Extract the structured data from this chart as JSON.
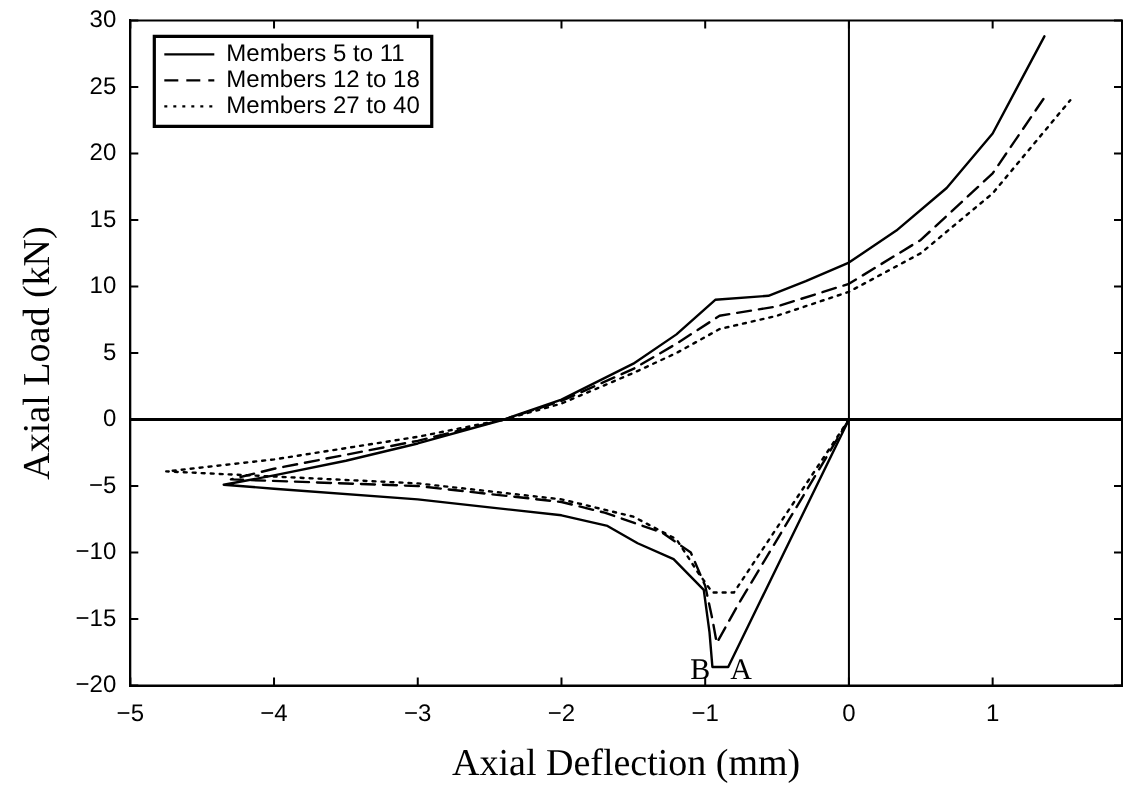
{
  "chart_data": {
    "type": "line",
    "xlabel": "Axial Deflection (mm)",
    "ylabel": "Axial Load (kN)",
    "xlim": [
      -5,
      1.9
    ],
    "xticks": [
      -5,
      -4,
      -3,
      -2,
      -1,
      0,
      1
    ],
    "ylim": [
      -20,
      30
    ],
    "yticks": [
      -20,
      -15,
      -10,
      -5,
      0,
      5,
      10,
      15,
      20,
      25,
      30
    ],
    "grid": false,
    "legend": "top left",
    "marker": "none",
    "series": [
      {
        "name": "Members 5 to 11",
        "color": "#000000",
        "line_style": "solid",
        "x": [
          0,
          -0.84,
          -0.95,
          -0.97,
          -1.01,
          -1.22,
          -1.47,
          -1.68,
          -2,
          -3,
          -4,
          -4.35,
          -4,
          -3.5,
          -3,
          -2.4,
          -2,
          -1.5,
          -1.2,
          -0.93,
          -0.56,
          -0.3,
          0,
          0.33,
          0.68,
          1,
          1.36
        ],
        "values": [
          0,
          -18.6,
          -18.6,
          -16,
          -12.8,
          -10.5,
          -9.3,
          -8,
          -7.2,
          -6,
          -5.2,
          -4.9,
          -4.2,
          -3.1,
          -1.8,
          0,
          1.5,
          4.2,
          6.4,
          9,
          9.3,
          10.4,
          11.8,
          14.2,
          17.4,
          21.5,
          28.8
        ]
      },
      {
        "name": "Members 12 to 18",
        "color": "#000000",
        "line_style": "dashed",
        "x": [
          0,
          -0.77,
          -0.92,
          -0.95,
          -1,
          -1.1,
          -1.3,
          -1.7,
          -2,
          -3,
          -4.3,
          -4,
          -3,
          -2.4,
          -2,
          -1.5,
          -1.2,
          -0.9,
          -0.5,
          0,
          0.5,
          1,
          1.36
        ],
        "values": [
          0,
          -13.9,
          -16.8,
          -15,
          -12.5,
          -10,
          -8.5,
          -7,
          -6.2,
          -5,
          -4.5,
          -3.7,
          -1.6,
          0,
          1.4,
          3.8,
          5.7,
          7.8,
          8.5,
          10.2,
          13.5,
          18.5,
          24.2
        ]
      },
      {
        "name": "Members 27 to 40",
        "color": "#000000",
        "line_style": "dotted",
        "x": [
          0,
          -0.8,
          -0.95,
          -1.05,
          -1.2,
          -1.5,
          -2,
          -3,
          -4.75,
          -4,
          -3,
          -2.4,
          -2,
          -1.5,
          -1.2,
          -0.9,
          -0.5,
          0,
          0.5,
          1,
          1.54
        ],
        "values": [
          0,
          -13,
          -13,
          -11.5,
          -9,
          -7.3,
          -6,
          -4.8,
          -3.9,
          -3,
          -1.3,
          0,
          1.2,
          3.5,
          5,
          6.8,
          7.8,
          9.6,
          12.5,
          17,
          24
        ]
      }
    ],
    "ref_lines": [
      {
        "axis": "x",
        "value": 0,
        "color": "#000000",
        "line_style": "solid"
      },
      {
        "axis": "y",
        "value": 0,
        "color": "#000000",
        "line_style": "solid"
      }
    ],
    "annotations": [
      {
        "text": "A",
        "x": -0.84,
        "y": -18.6
      },
      {
        "text": "B",
        "x": -0.95,
        "y": -18.6
      }
    ]
  }
}
